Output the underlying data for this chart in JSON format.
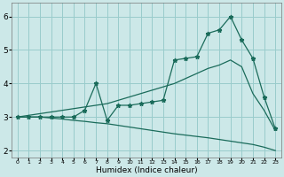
{
  "xlabel": "Humidex (Indice chaleur)",
  "bg_color": "#cce8e8",
  "grid_color": "#99cccc",
  "line_color": "#1a6b5a",
  "x_data": [
    0,
    1,
    2,
    3,
    4,
    5,
    6,
    7,
    8,
    9,
    10,
    11,
    12,
    13,
    14,
    15,
    16,
    17,
    18,
    19,
    20,
    21,
    22,
    23
  ],
  "y_main": [
    3.0,
    3.0,
    3.0,
    3.0,
    3.0,
    3.0,
    3.2,
    4.0,
    2.9,
    3.35,
    3.35,
    3.4,
    3.45,
    3.5,
    4.7,
    4.75,
    4.8,
    5.5,
    5.6,
    6.0,
    5.3,
    4.75,
    3.6,
    2.65
  ],
  "y_upper": [
    3.0,
    3.05,
    3.1,
    3.15,
    3.2,
    3.25,
    3.3,
    3.35,
    3.4,
    3.5,
    3.6,
    3.7,
    3.8,
    3.9,
    4.0,
    4.15,
    4.3,
    4.45,
    4.55,
    4.7,
    4.5,
    3.7,
    3.2,
    2.6
  ],
  "y_lower": [
    3.0,
    3.0,
    3.0,
    2.97,
    2.94,
    2.9,
    2.87,
    2.83,
    2.8,
    2.75,
    2.7,
    2.65,
    2.6,
    2.55,
    2.5,
    2.46,
    2.42,
    2.38,
    2.33,
    2.28,
    2.23,
    2.18,
    2.1,
    2.0
  ],
  "ylim": [
    1.8,
    6.4
  ],
  "yticks": [
    2,
    3,
    4,
    5,
    6
  ],
  "xticks": [
    0,
    1,
    2,
    3,
    4,
    5,
    6,
    7,
    8,
    9,
    10,
    11,
    12,
    13,
    14,
    15,
    16,
    17,
    18,
    19,
    20,
    21,
    22,
    23
  ]
}
